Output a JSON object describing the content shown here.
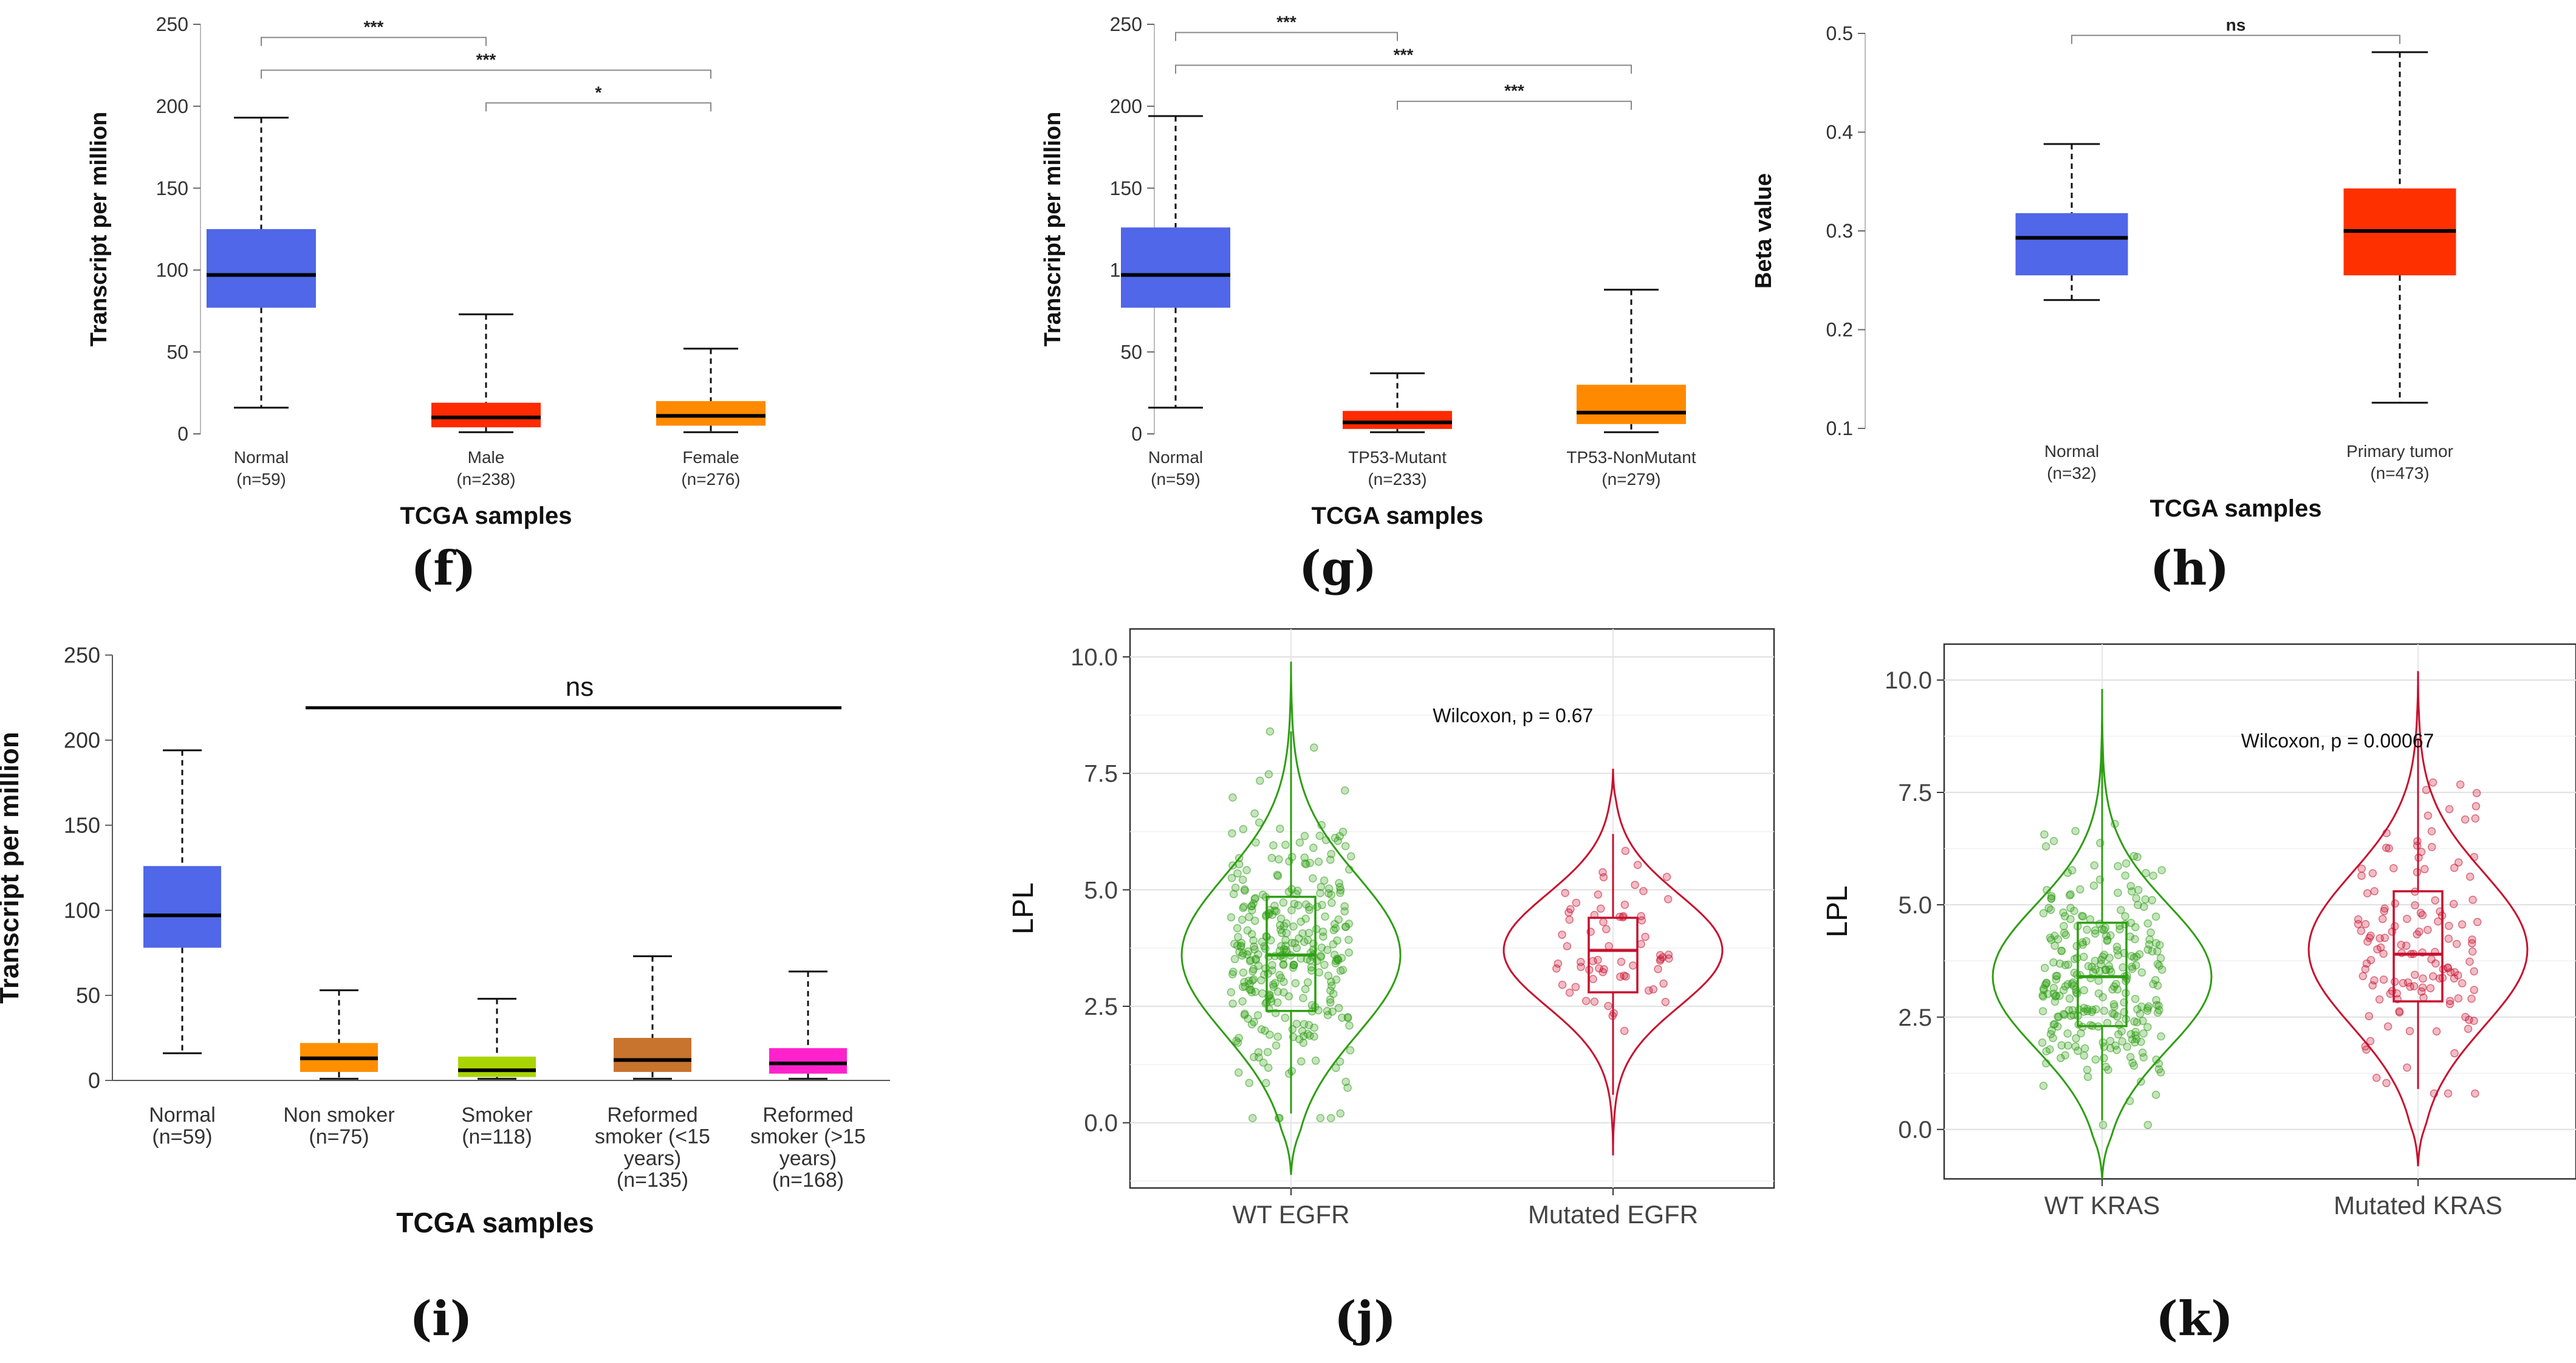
{
  "colors": {
    "normal": "#4f67e8",
    "male": "#ff2a00",
    "female": "#ff8a00",
    "tumor": "#ff3000",
    "nonsmoker": "#ff8f00",
    "smoker": "#a9d400",
    "reformed_lt15": "#c8732e",
    "reformed_gt15": "#ff22cc",
    "wt": "#2e9e12",
    "mut": "#c8102e"
  },
  "labels": {
    "f": "(f)",
    "g": "(g)",
    "h": "(h)",
    "i": "(i)",
    "j": "(j)",
    "k": "(k)"
  },
  "chart_data": [
    {
      "id": "f",
      "type": "box",
      "ylabel": "Transcript per million",
      "xlabel": "TCGA samples",
      "ylim": [
        0,
        250
      ],
      "yticks": [
        "0",
        "50",
        "100",
        "150",
        "200",
        "250"
      ],
      "groups": [
        {
          "name": "Normal",
          "n": "(n=59)",
          "color": "normal",
          "min": 16,
          "q1": 77,
          "median": 97,
          "q3": 125,
          "max": 193
        },
        {
          "name": "Male",
          "n": "(n=238)",
          "color": "male",
          "min": 1,
          "q1": 4,
          "median": 10,
          "q3": 19,
          "max": 73
        },
        {
          "name": "Female",
          "n": "(n=276)",
          "color": "female",
          "min": 1,
          "q1": 5,
          "median": 11,
          "q3": 20,
          "max": 52
        }
      ],
      "brackets": [
        {
          "from": 0,
          "to": 1,
          "label": "***",
          "y": 242
        },
        {
          "from": 0,
          "to": 2,
          "label": "***",
          "y": 222
        },
        {
          "from": 1,
          "to": 2,
          "label": "*",
          "y": 202
        }
      ]
    },
    {
      "id": "g",
      "type": "box",
      "ylabel": "Transcript per million",
      "xlabel": "TCGA samples",
      "ylim": [
        0,
        250
      ],
      "yticks": [
        "0",
        "50",
        "100",
        "150",
        "200",
        "250"
      ],
      "groups": [
        {
          "name": "Normal",
          "n": "(n=59)",
          "color": "normal",
          "min": 16,
          "q1": 77,
          "median": 97,
          "q3": 126,
          "max": 194
        },
        {
          "name": "TP53-Mutant",
          "n": "(n=233)",
          "color": "male",
          "min": 1,
          "q1": 3,
          "median": 7,
          "q3": 14,
          "max": 37
        },
        {
          "name": "TP53-NonMutant",
          "n": "(n=279)",
          "color": "female",
          "min": 1,
          "q1": 6,
          "median": 13,
          "q3": 30,
          "max": 88
        }
      ],
      "brackets": [
        {
          "from": 0,
          "to": 1,
          "label": "***",
          "y": 245
        },
        {
          "from": 0,
          "to": 2,
          "label": "***",
          "y": 225
        },
        {
          "from": 1,
          "to": 2,
          "label": "***",
          "y": 203
        }
      ]
    },
    {
      "id": "h",
      "type": "box",
      "ylabel": "Beta value",
      "xlabel": "TCGA samples",
      "ylim": [
        0.1,
        0.5
      ],
      "yticks": [
        "0.1",
        "0.2",
        "0.3",
        "0.4",
        "0.5"
      ],
      "groups": [
        {
          "name": "Normal",
          "n": "(n=32)",
          "color": "normal",
          "min": 0.23,
          "q1": 0.255,
          "median": 0.293,
          "q3": 0.318,
          "max": 0.388
        },
        {
          "name": "Primary tumor",
          "n": "(n=473)",
          "color": "tumor",
          "min": 0.126,
          "q1": 0.255,
          "median": 0.3,
          "q3": 0.343,
          "max": 0.481
        }
      ],
      "brackets": [
        {
          "from": 0,
          "to": 1,
          "label": "ns",
          "y": 0.498
        }
      ]
    },
    {
      "id": "i",
      "type": "box",
      "ylabel": "Transcript per million",
      "xlabel": "TCGA samples",
      "ylim": [
        0,
        250
      ],
      "yticks": [
        "0",
        "50",
        "100",
        "150",
        "200",
        "250"
      ],
      "groups": [
        {
          "name": "Normal",
          "n": "(n=59)",
          "color": "normal",
          "min": 16,
          "q1": 78,
          "median": 97,
          "q3": 126,
          "max": 194
        },
        {
          "name": "Non smoker",
          "n": "(n=75)",
          "color": "nonsmoker",
          "min": 1,
          "q1": 5,
          "median": 13,
          "q3": 22,
          "max": 53
        },
        {
          "name": "Smoker",
          "n": "(n=118)",
          "color": "smoker",
          "min": 1,
          "q1": 2,
          "median": 6,
          "q3": 14,
          "max": 48
        },
        {
          "name": "Reformed smoker (<15 years)",
          "n": "(n=135)",
          "color": "reformed_lt15",
          "min": 1,
          "q1": 5,
          "median": 12,
          "q3": 25,
          "max": 73
        },
        {
          "name": "Reformed smoker (>15 years)",
          "n": "(n=168)",
          "color": "reformed_gt15",
          "min": 1,
          "q1": 4,
          "median": 10,
          "q3": 19,
          "max": 64
        }
      ],
      "sig_line": {
        "from": 1,
        "to": 4,
        "label": "ns",
        "y": 219
      }
    },
    {
      "id": "j",
      "type": "violin",
      "ylabel": "LPL",
      "ylim": [
        -1.4,
        10.6
      ],
      "yticks": [
        0,
        2.5,
        5,
        7.5,
        10
      ],
      "ytick_labels": [
        "0.0",
        "2.5",
        "5.0",
        "7.5",
        "10.0"
      ],
      "annotation": "Wilcoxon, p = 0.67",
      "annotation_y": 8.6,
      "groups": [
        {
          "name": "WT EGFR",
          "color": "wt",
          "n_points": 330,
          "vmin": -1.1,
          "vmax": 9.9,
          "mode": 3.6,
          "sd": 1.7,
          "max_half_width": 0.36,
          "q1": 2.4,
          "median": 3.6,
          "q3": 4.85,
          "whisker_lo": 0.2,
          "whisker_hi": 8.4
        },
        {
          "name": "Mutated EGFR",
          "color": "mut",
          "n_points": 66,
          "vmin": -0.7,
          "vmax": 7.6,
          "mode": 3.7,
          "sd": 1.2,
          "max_half_width": 0.36,
          "q1": 2.8,
          "median": 3.7,
          "q3": 4.4,
          "whisker_lo": 0.6,
          "whisker_hi": 6.2
        }
      ]
    },
    {
      "id": "k",
      "type": "violin",
      "ylabel": "LPL",
      "ylim": [
        -1.1,
        10.8
      ],
      "yticks": [
        0,
        2.5,
        5,
        7.5,
        10
      ],
      "ytick_labels": [
        "0.0",
        "2.5",
        "5.0",
        "7.5",
        "10.0"
      ],
      "annotation": "Wilcoxon, p = 0.00067",
      "annotation_y": 8.5,
      "groups": [
        {
          "name": "WT KRAS",
          "color": "wt",
          "n_points": 290,
          "vmin": -1.1,
          "vmax": 9.8,
          "mode": 3.4,
          "sd": 1.6,
          "max_half_width": 0.36,
          "q1": 2.3,
          "median": 3.4,
          "q3": 4.6,
          "whisker_lo": 0.2,
          "whisker_hi": 8.4
        },
        {
          "name": "Mutated KRAS",
          "color": "mut",
          "n_points": 140,
          "vmin": -0.8,
          "vmax": 10.2,
          "mode": 4.0,
          "sd": 1.7,
          "max_half_width": 0.36,
          "q1": 2.85,
          "median": 3.9,
          "q3": 5.3,
          "whisker_lo": 0.9,
          "whisker_hi": 8.7
        }
      ]
    }
  ]
}
